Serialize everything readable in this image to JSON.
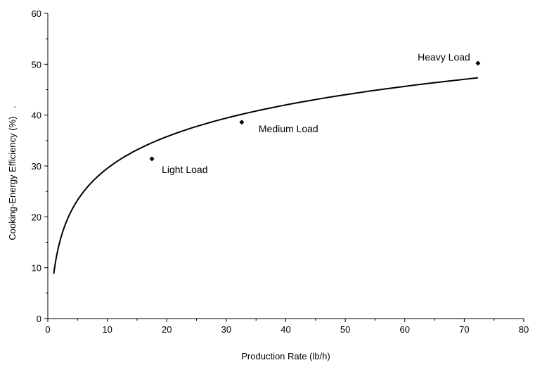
{
  "chart_data": {
    "type": "scatter",
    "title": "",
    "xlabel": "Production Rate (lb/h)",
    "ylabel": "Cooking-Energy Efficiency (%)",
    "ylabel_suffix": ".",
    "xlim": [
      0,
      80
    ],
    "ylim": [
      0,
      60
    ],
    "xticks": [
      0,
      10,
      20,
      30,
      40,
      50,
      60,
      70,
      80
    ],
    "yticks": [
      0,
      10,
      20,
      30,
      40,
      50,
      60
    ],
    "grid": false,
    "points": [
      {
        "x": 17.5,
        "y": 31.4,
        "label": "Light Load"
      },
      {
        "x": 32.6,
        "y": 38.6,
        "label": "Medium Load"
      },
      {
        "x": 72.3,
        "y": 50.2,
        "label": "Heavy Load"
      }
    ],
    "trendline": {
      "type": "logarithmic",
      "a": 9.0,
      "x": [
        1.0,
        2.0,
        4.0,
        7.0,
        10.0,
        15.0,
        20.0,
        30.0,
        40.0,
        50.0,
        60.0,
        72.3
      ],
      "y": [
        8.8,
        15.0,
        21.3,
        26.4,
        29.7,
        33.4,
        36.0,
        39.7,
        42.3,
        44.3,
        45.9,
        47.1
      ]
    }
  }
}
